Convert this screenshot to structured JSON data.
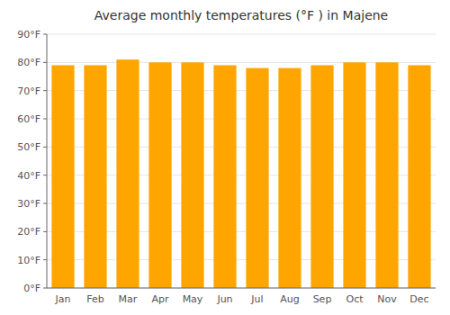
{
  "chart_data": {
    "type": "bar",
    "title": "Average monthly temperatures (°F ) in Majene",
    "categories": [
      "Jan",
      "Feb",
      "Mar",
      "Apr",
      "May",
      "Jun",
      "Jul",
      "Aug",
      "Sep",
      "Oct",
      "Nov",
      "Dec"
    ],
    "values": [
      79,
      79,
      81,
      80,
      80,
      79,
      78,
      78,
      79,
      80,
      80,
      79
    ],
    "color": "#FFA500",
    "ylim": [
      0,
      90
    ],
    "yticks": [
      {
        "value": 0,
        "label": "0°F"
      },
      {
        "value": 10,
        "label": "10°F"
      },
      {
        "value": 20,
        "label": "20°F"
      },
      {
        "value": 30,
        "label": "30°F"
      },
      {
        "value": 40,
        "label": "40°F"
      },
      {
        "value": 50,
        "label": "50°F"
      },
      {
        "value": 60,
        "label": "60°F"
      },
      {
        "value": 70,
        "label": "70°F"
      },
      {
        "value": 80,
        "label": "80°F"
      },
      {
        "value": 90,
        "label": "90°F"
      }
    ],
    "grid": true
  }
}
